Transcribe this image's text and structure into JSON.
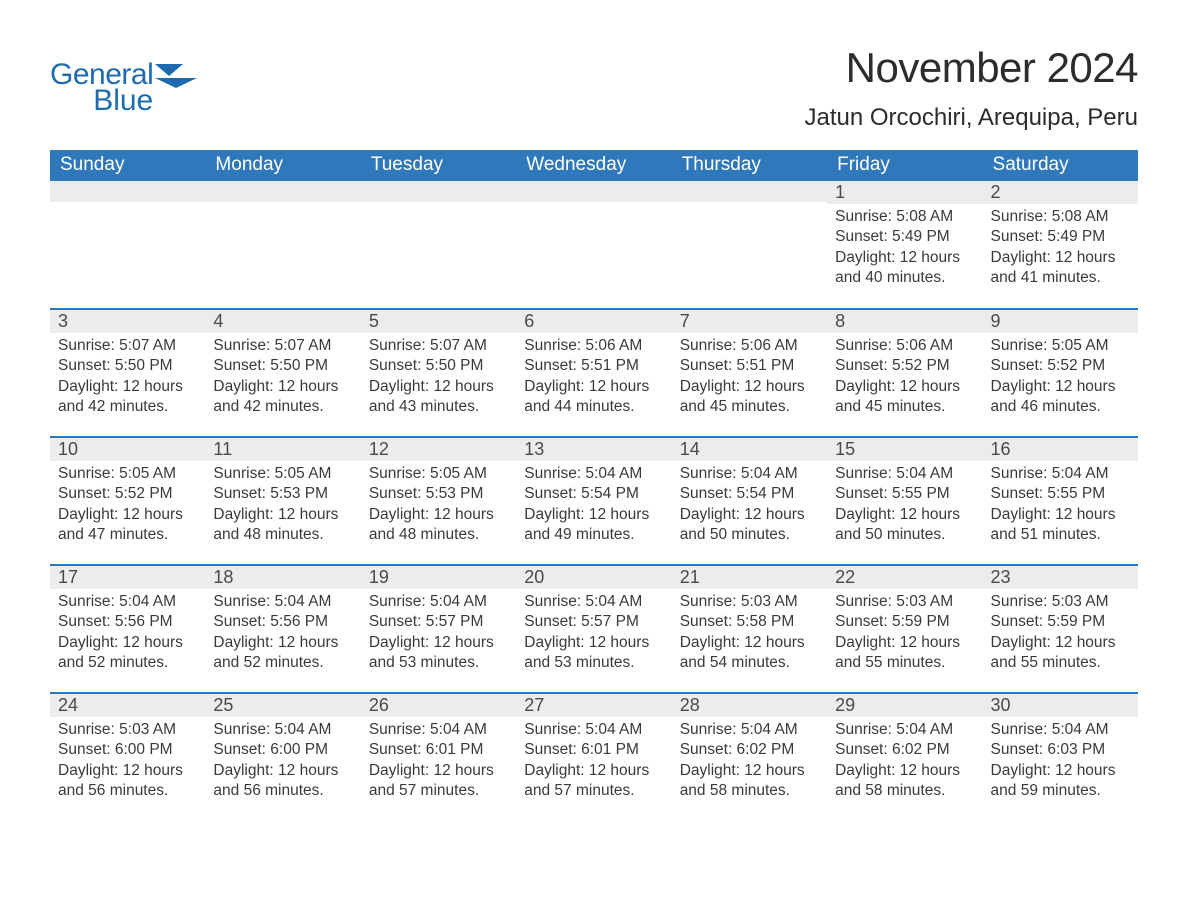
{
  "logo": {
    "text1": "General",
    "text2": "Blue",
    "flag_color": "#1f6bb0"
  },
  "header": {
    "month_title": "November 2024",
    "location": "Jatun Orcochiri, Arequipa, Peru"
  },
  "colors": {
    "header_bg": "#2e78bb",
    "header_text": "#ffffff",
    "daynum_bg": "#ececec",
    "row_divider": "#2e78bb",
    "body_text": "#3a3a3a",
    "logo_color": "#1f6bb0",
    "background": "#ffffff"
  },
  "fonts": {
    "month_title_pt": 42,
    "location_pt": 24,
    "weekday_pt": 19,
    "daynum_pt": 18,
    "data_pt": 15.5,
    "logo_pt": 30
  },
  "weekdays": [
    "Sunday",
    "Monday",
    "Tuesday",
    "Wednesday",
    "Thursday",
    "Friday",
    "Saturday"
  ],
  "weeks": [
    [
      {
        "day": "",
        "sunrise": "",
        "sunset": "",
        "daylight": ""
      },
      {
        "day": "",
        "sunrise": "",
        "sunset": "",
        "daylight": ""
      },
      {
        "day": "",
        "sunrise": "",
        "sunset": "",
        "daylight": ""
      },
      {
        "day": "",
        "sunrise": "",
        "sunset": "",
        "daylight": ""
      },
      {
        "day": "",
        "sunrise": "",
        "sunset": "",
        "daylight": ""
      },
      {
        "day": "1",
        "sunrise": "Sunrise: 5:08 AM",
        "sunset": "Sunset: 5:49 PM",
        "daylight": "Daylight: 12 hours and 40 minutes."
      },
      {
        "day": "2",
        "sunrise": "Sunrise: 5:08 AM",
        "sunset": "Sunset: 5:49 PM",
        "daylight": "Daylight: 12 hours and 41 minutes."
      }
    ],
    [
      {
        "day": "3",
        "sunrise": "Sunrise: 5:07 AM",
        "sunset": "Sunset: 5:50 PM",
        "daylight": "Daylight: 12 hours and 42 minutes."
      },
      {
        "day": "4",
        "sunrise": "Sunrise: 5:07 AM",
        "sunset": "Sunset: 5:50 PM",
        "daylight": "Daylight: 12 hours and 42 minutes."
      },
      {
        "day": "5",
        "sunrise": "Sunrise: 5:07 AM",
        "sunset": "Sunset: 5:50 PM",
        "daylight": "Daylight: 12 hours and 43 minutes."
      },
      {
        "day": "6",
        "sunrise": "Sunrise: 5:06 AM",
        "sunset": "Sunset: 5:51 PM",
        "daylight": "Daylight: 12 hours and 44 minutes."
      },
      {
        "day": "7",
        "sunrise": "Sunrise: 5:06 AM",
        "sunset": "Sunset: 5:51 PM",
        "daylight": "Daylight: 12 hours and 45 minutes."
      },
      {
        "day": "8",
        "sunrise": "Sunrise: 5:06 AM",
        "sunset": "Sunset: 5:52 PM",
        "daylight": "Daylight: 12 hours and 45 minutes."
      },
      {
        "day": "9",
        "sunrise": "Sunrise: 5:05 AM",
        "sunset": "Sunset: 5:52 PM",
        "daylight": "Daylight: 12 hours and 46 minutes."
      }
    ],
    [
      {
        "day": "10",
        "sunrise": "Sunrise: 5:05 AM",
        "sunset": "Sunset: 5:52 PM",
        "daylight": "Daylight: 12 hours and 47 minutes."
      },
      {
        "day": "11",
        "sunrise": "Sunrise: 5:05 AM",
        "sunset": "Sunset: 5:53 PM",
        "daylight": "Daylight: 12 hours and 48 minutes."
      },
      {
        "day": "12",
        "sunrise": "Sunrise: 5:05 AM",
        "sunset": "Sunset: 5:53 PM",
        "daylight": "Daylight: 12 hours and 48 minutes."
      },
      {
        "day": "13",
        "sunrise": "Sunrise: 5:04 AM",
        "sunset": "Sunset: 5:54 PM",
        "daylight": "Daylight: 12 hours and 49 minutes."
      },
      {
        "day": "14",
        "sunrise": "Sunrise: 5:04 AM",
        "sunset": "Sunset: 5:54 PM",
        "daylight": "Daylight: 12 hours and 50 minutes."
      },
      {
        "day": "15",
        "sunrise": "Sunrise: 5:04 AM",
        "sunset": "Sunset: 5:55 PM",
        "daylight": "Daylight: 12 hours and 50 minutes."
      },
      {
        "day": "16",
        "sunrise": "Sunrise: 5:04 AM",
        "sunset": "Sunset: 5:55 PM",
        "daylight": "Daylight: 12 hours and 51 minutes."
      }
    ],
    [
      {
        "day": "17",
        "sunrise": "Sunrise: 5:04 AM",
        "sunset": "Sunset: 5:56 PM",
        "daylight": "Daylight: 12 hours and 52 minutes."
      },
      {
        "day": "18",
        "sunrise": "Sunrise: 5:04 AM",
        "sunset": "Sunset: 5:56 PM",
        "daylight": "Daylight: 12 hours and 52 minutes."
      },
      {
        "day": "19",
        "sunrise": "Sunrise: 5:04 AM",
        "sunset": "Sunset: 5:57 PM",
        "daylight": "Daylight: 12 hours and 53 minutes."
      },
      {
        "day": "20",
        "sunrise": "Sunrise: 5:04 AM",
        "sunset": "Sunset: 5:57 PM",
        "daylight": "Daylight: 12 hours and 53 minutes."
      },
      {
        "day": "21",
        "sunrise": "Sunrise: 5:03 AM",
        "sunset": "Sunset: 5:58 PM",
        "daylight": "Daylight: 12 hours and 54 minutes."
      },
      {
        "day": "22",
        "sunrise": "Sunrise: 5:03 AM",
        "sunset": "Sunset: 5:59 PM",
        "daylight": "Daylight: 12 hours and 55 minutes."
      },
      {
        "day": "23",
        "sunrise": "Sunrise: 5:03 AM",
        "sunset": "Sunset: 5:59 PM",
        "daylight": "Daylight: 12 hours and 55 minutes."
      }
    ],
    [
      {
        "day": "24",
        "sunrise": "Sunrise: 5:03 AM",
        "sunset": "Sunset: 6:00 PM",
        "daylight": "Daylight: 12 hours and 56 minutes."
      },
      {
        "day": "25",
        "sunrise": "Sunrise: 5:04 AM",
        "sunset": "Sunset: 6:00 PM",
        "daylight": "Daylight: 12 hours and 56 minutes."
      },
      {
        "day": "26",
        "sunrise": "Sunrise: 5:04 AM",
        "sunset": "Sunset: 6:01 PM",
        "daylight": "Daylight: 12 hours and 57 minutes."
      },
      {
        "day": "27",
        "sunrise": "Sunrise: 5:04 AM",
        "sunset": "Sunset: 6:01 PM",
        "daylight": "Daylight: 12 hours and 57 minutes."
      },
      {
        "day": "28",
        "sunrise": "Sunrise: 5:04 AM",
        "sunset": "Sunset: 6:02 PM",
        "daylight": "Daylight: 12 hours and 58 minutes."
      },
      {
        "day": "29",
        "sunrise": "Sunrise: 5:04 AM",
        "sunset": "Sunset: 6:02 PM",
        "daylight": "Daylight: 12 hours and 58 minutes."
      },
      {
        "day": "30",
        "sunrise": "Sunrise: 5:04 AM",
        "sunset": "Sunset: 6:03 PM",
        "daylight": "Daylight: 12 hours and 59 minutes."
      }
    ]
  ]
}
